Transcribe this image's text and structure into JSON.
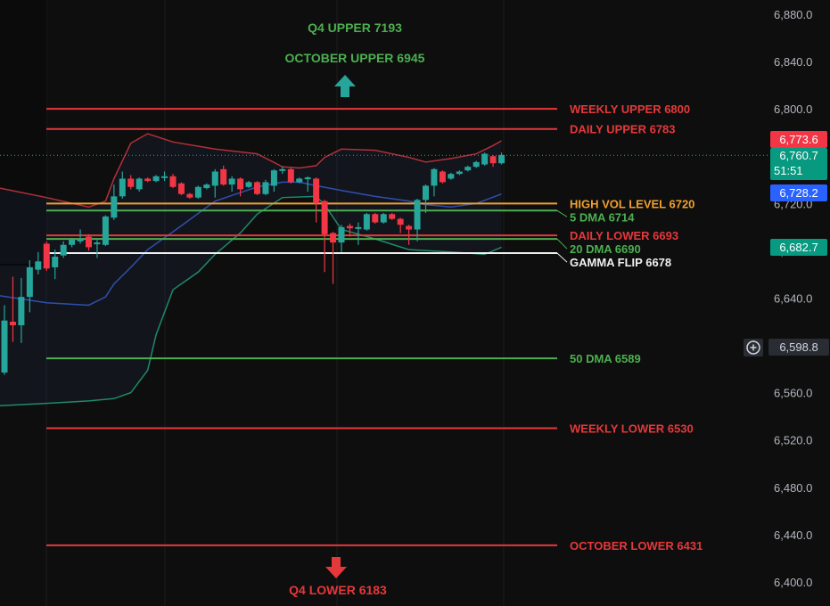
{
  "chart_data": {
    "type": "candlestick",
    "y_axis": {
      "range": [
        6390,
        6895
      ],
      "ticks": [
        "6,880.0",
        "6,840.0",
        "6,800.0",
        "6,760.0",
        "6,720.0",
        "6,680.0",
        "6,640.0",
        "6,600.0",
        "6,560.0",
        "6,520.0",
        "6,480.0",
        "6,440.0",
        "6,400.0"
      ],
      "tick_values": [
        6880,
        6840,
        6800,
        6760,
        6720,
        6680,
        6640,
        6600,
        6560,
        6520,
        6480,
        6440,
        6400
      ],
      "position": "right"
    },
    "candles_ohlc": [
      [
        6577,
        6634,
        6575,
        6621
      ],
      [
        6620,
        6658,
        6603,
        6617
      ],
      [
        6617,
        6657,
        6602,
        6641
      ],
      [
        6641,
        6672,
        6628,
        6666
      ],
      [
        6664,
        6679,
        6660,
        6671
      ],
      [
        6686,
        6688,
        6663,
        6665
      ],
      [
        6666,
        6681,
        6656,
        6675
      ],
      [
        6676,
        6688,
        6674,
        6685
      ],
      [
        6685,
        6691,
        6683,
        6690
      ],
      [
        6688,
        6698,
        6686,
        6690
      ],
      [
        6692,
        6694,
        6680,
        6683
      ],
      [
        6686,
        6689,
        6674,
        6687
      ],
      [
        6685,
        6710,
        6684,
        6709
      ],
      [
        6708,
        6736,
        6706,
        6726
      ],
      [
        6726,
        6747,
        6724,
        6741
      ],
      [
        6741,
        6744,
        6732,
        6734
      ],
      [
        6732,
        6742,
        6730,
        6741
      ],
      [
        6741,
        6742,
        6738,
        6739
      ],
      [
        6739,
        6744,
        6738,
        6743
      ],
      [
        6742,
        6747,
        6739,
        6743
      ],
      [
        6743,
        6745,
        6733,
        6734
      ],
      [
        6737,
        6738,
        6727,
        6728
      ],
      [
        6728,
        6729,
        6724,
        6725
      ],
      [
        6725,
        6735,
        6724,
        6734
      ],
      [
        6733,
        6737,
        6732,
        6736
      ],
      [
        6735,
        6749,
        6725,
        6747
      ],
      [
        6749,
        6752,
        6735,
        6736
      ],
      [
        6736,
        6743,
        6730,
        6741
      ],
      [
        6741,
        6742,
        6726,
        6732
      ],
      [
        6734,
        6739,
        6733,
        6738
      ],
      [
        6738,
        6739,
        6727,
        6728
      ],
      [
        6728,
        6740,
        6727,
        6738
      ],
      [
        6735,
        6749,
        6730,
        6748
      ],
      [
        6749,
        6751,
        6745,
        6749
      ],
      [
        6749,
        6750,
        6737,
        6738
      ],
      [
        6738,
        6742,
        6737,
        6741
      ],
      [
        6741,
        6743,
        6730,
        6742
      ],
      [
        6741,
        6742,
        6704,
        6720
      ],
      [
        6722,
        6723,
        6662,
        6694
      ],
      [
        6695,
        6696,
        6652,
        6687
      ],
      [
        6687,
        6702,
        6679,
        6700
      ],
      [
        6701,
        6703,
        6692,
        6699
      ],
      [
        6699,
        6704,
        6685,
        6700
      ],
      [
        6698,
        6712,
        6697,
        6711
      ],
      [
        6711,
        6712,
        6703,
        6704
      ],
      [
        6704,
        6712,
        6703,
        6711
      ],
      [
        6711,
        6712,
        6706,
        6707
      ],
      [
        6707,
        6708,
        6695,
        6702
      ],
      [
        6701,
        6702,
        6685,
        6698
      ],
      [
        6698,
        6724,
        6688,
        6723
      ],
      [
        6723,
        6736,
        6712,
        6735
      ],
      [
        6735,
        6750,
        6726,
        6749
      ],
      [
        6747,
        6748,
        6737,
        6738
      ],
      [
        6741,
        6746,
        6740,
        6745
      ],
      [
        6745,
        6748,
        6744,
        6747
      ],
      [
        6748,
        6752,
        6747,
        6751
      ],
      [
        6751,
        6756,
        6750,
        6755
      ],
      [
        6753,
        6763,
        6752,
        6762
      ],
      [
        6760,
        6761,
        6751,
        6754
      ],
      [
        6754,
        6763,
        6753,
        6761
      ]
    ],
    "bollinger": {
      "upper": [
        [
          0,
          6733
        ],
        [
          5,
          6725
        ],
        [
          10,
          6717
        ],
        [
          12,
          6722
        ],
        [
          13,
          6741
        ],
        [
          15,
          6771
        ],
        [
          17,
          6779
        ],
        [
          20,
          6772
        ],
        [
          25,
          6766
        ],
        [
          30,
          6762
        ],
        [
          33,
          6751
        ],
        [
          35,
          6750
        ],
        [
          37,
          6752
        ],
        [
          38,
          6759
        ],
        [
          40,
          6766
        ],
        [
          44,
          6765
        ],
        [
          48,
          6759
        ],
        [
          50,
          6755
        ],
        [
          53,
          6758
        ],
        [
          56,
          6762
        ],
        [
          58,
          6769
        ],
        [
          59,
          6773
        ]
      ],
      "middle": [
        [
          0,
          6642
        ],
        [
          5,
          6636
        ],
        [
          10,
          6634
        ],
        [
          12,
          6641
        ],
        [
          13,
          6652
        ],
        [
          15,
          6666
        ],
        [
          17,
          6681
        ],
        [
          20,
          6696
        ],
        [
          25,
          6722
        ],
        [
          30,
          6734
        ],
        [
          33,
          6738
        ],
        [
          35,
          6738
        ],
        [
          37,
          6735
        ],
        [
          40,
          6731
        ],
        [
          44,
          6726
        ],
        [
          48,
          6722
        ],
        [
          50,
          6719
        ],
        [
          53,
          6717
        ],
        [
          56,
          6720
        ],
        [
          59,
          6728
        ]
      ],
      "lower": [
        [
          0,
          6549
        ],
        [
          5,
          6551
        ],
        [
          10,
          6553
        ],
        [
          13,
          6555
        ],
        [
          15,
          6560
        ],
        [
          17,
          6579
        ],
        [
          18,
          6609
        ],
        [
          20,
          6647
        ],
        [
          23,
          6662
        ],
        [
          25,
          6677
        ],
        [
          28,
          6695
        ],
        [
          30,
          6711
        ],
        [
          33,
          6725
        ],
        [
          37,
          6726
        ],
        [
          38,
          6719
        ],
        [
          40,
          6698
        ],
        [
          44,
          6690
        ],
        [
          48,
          6681
        ],
        [
          53,
          6679
        ],
        [
          57,
          6677
        ],
        [
          59,
          6683
        ]
      ]
    },
    "levels": [
      {
        "label": "WEEKLY UPPER 6800",
        "value": 6800,
        "color": "#e5383b"
      },
      {
        "label": "DAILY UPPER 6783",
        "value": 6783,
        "color": "#e5383b"
      },
      {
        "label": "HIGH VOL LEVEL 6720",
        "value": 6720,
        "color": "#f0a030"
      },
      {
        "label": "5 DMA 6714",
        "value": 6714,
        "color": "#4caf50"
      },
      {
        "label": "DAILY LOWER 6693",
        "value": 6693,
        "color": "#e5383b"
      },
      {
        "label": "20 DMA 6690",
        "value": 6690,
        "color": "#4caf50"
      },
      {
        "label": "GAMMA FLIP 6678",
        "value": 6678,
        "color": "#f0f0f0"
      },
      {
        "label": "50 DMA 6589",
        "value": 6589,
        "color": "#4caf50"
      },
      {
        "label": "WEEKLY LOWER 6530",
        "value": 6530,
        "color": "#e5383b"
      },
      {
        "label": "OCTOBER LOWER 6431",
        "value": 6431,
        "color": "#e5383b"
      }
    ],
    "annotations": {
      "q4_upper": "Q4 UPPER 7193",
      "october_upper": "OCTOBER UPPER 6945",
      "q4_lower": "Q4 LOWER 6183",
      "up_arrow_color": "#26a69a",
      "down_arrow_color": "#e5383b"
    },
    "current_price_line": 6760.7,
    "colors": {
      "up": "#26a69a",
      "down": "#f23645",
      "bb_upper": "#b2303a",
      "bb_middle": "#2f4fb0",
      "bb_lower": "#1f8a6a",
      "background": "#0e0e0e"
    }
  },
  "price_badges": {
    "bb_upper": {
      "text": "6,773.6",
      "color": "#f23645"
    },
    "last_price": {
      "text": "6,760.7",
      "color": "#089981"
    },
    "countdown": "51:51",
    "bb_middle": {
      "text": "6,728.2",
      "color": "#2962ff"
    },
    "bb_lower": {
      "text": "6,682.7",
      "color": "#089981"
    },
    "crosshair": {
      "text": "6,598.8",
      "icon": "plus-circle-icon"
    }
  }
}
